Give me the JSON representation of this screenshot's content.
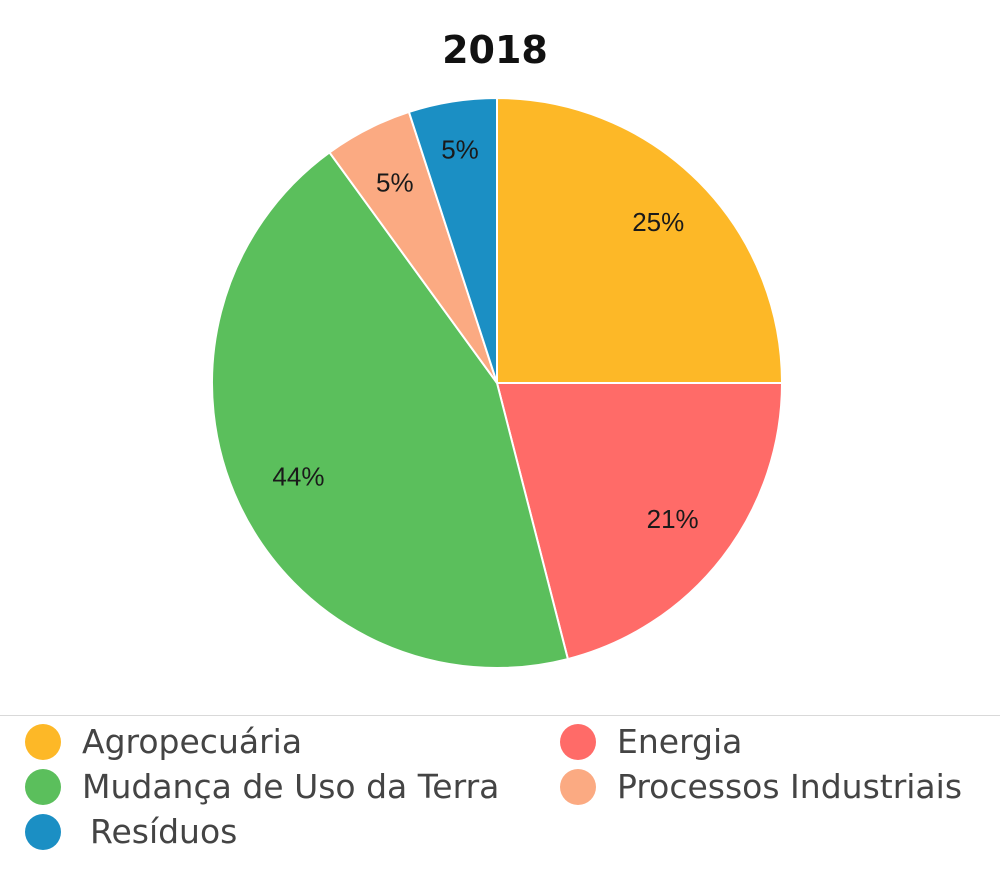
{
  "chart_data": {
    "type": "pie",
    "title": "2018",
    "categories": [
      "Agropecuária",
      "Energia",
      "Mudança de Uso da Terra",
      "Processos Industriais",
      "Resíduos"
    ],
    "values": [
      25,
      21,
      44,
      5,
      5
    ],
    "labels": [
      "25%",
      "21%",
      "44%",
      "5%",
      "5%"
    ],
    "colors": [
      "#FDB827",
      "#FF6B68",
      "#5BBF5C",
      "#FBAA82",
      "#1B8FC4"
    ],
    "legend_position": "bottom"
  }
}
